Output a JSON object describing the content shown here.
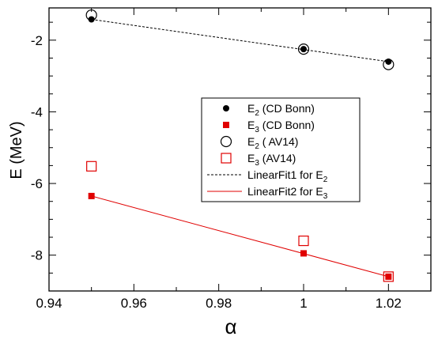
{
  "chart_data": {
    "type": "scatter",
    "title": "",
    "xlabel": "α",
    "ylabel": "E (MeV)",
    "xlim": [
      0.94,
      1.03
    ],
    "ylim": [
      -9,
      -1.1
    ],
    "x_ticks": [
      0.94,
      0.96,
      0.98,
      1,
      1.02
    ],
    "x_tick_labels": [
      "0.94",
      "0.96",
      "0.98",
      "1",
      "1.02"
    ],
    "y_ticks": [
      -8,
      -6,
      -4,
      -2
    ],
    "y_tick_labels": [
      "-8",
      "-6",
      "-4",
      "-2"
    ],
    "grid": false,
    "legend_position": "center-right",
    "series": [
      {
        "name": "E2 (CD Bonn)",
        "legend_main": "E",
        "legend_sub": "2",
        "legend_rest": " (CD Bonn)",
        "marker": "filled-circle",
        "color": "#000000",
        "x": [
          0.95,
          1.0,
          1.02
        ],
        "y": [
          -1.42,
          -2.25,
          -2.6
        ]
      },
      {
        "name": "E3 (CD Bonn)",
        "legend_main": "E",
        "legend_sub": "3",
        "legend_rest": " (CD Bonn)",
        "marker": "filled-square",
        "color": "#e00000",
        "x": [
          0.95,
          1.0,
          1.02
        ],
        "y": [
          -6.35,
          -7.95,
          -8.6
        ]
      },
      {
        "name": "E2 ( AV14)",
        "legend_main": "E",
        "legend_sub": "2",
        "legend_rest": " ( AV14)",
        "marker": "open-circle",
        "color": "#000000",
        "x": [
          0.95,
          1.0,
          1.02
        ],
        "y": [
          -1.3,
          -2.25,
          -2.68
        ]
      },
      {
        "name": "E3 (AV14)",
        "legend_main": "E",
        "legend_sub": "3",
        "legend_rest": " (AV14)",
        "marker": "open-square",
        "color": "#e00000",
        "x": [
          0.95,
          1.0,
          1.02
        ],
        "y": [
          -5.52,
          -7.6,
          -8.6
        ]
      },
      {
        "name": "LinearFit1 for E2",
        "legend_main": "LinearFit1 for E",
        "legend_sub": "2",
        "legend_rest": "",
        "marker": "dashed-line",
        "color": "#000000",
        "x": [
          0.95,
          1.02
        ],
        "y": [
          -1.42,
          -2.6
        ]
      },
      {
        "name": "LinearFit2 for E3",
        "legend_main": "LinearFit2 for E",
        "legend_sub": "3",
        "legend_rest": "",
        "marker": "solid-line",
        "color": "#e00000",
        "x": [
          0.95,
          1.02
        ],
        "y": [
          -6.35,
          -8.6
        ]
      }
    ]
  }
}
